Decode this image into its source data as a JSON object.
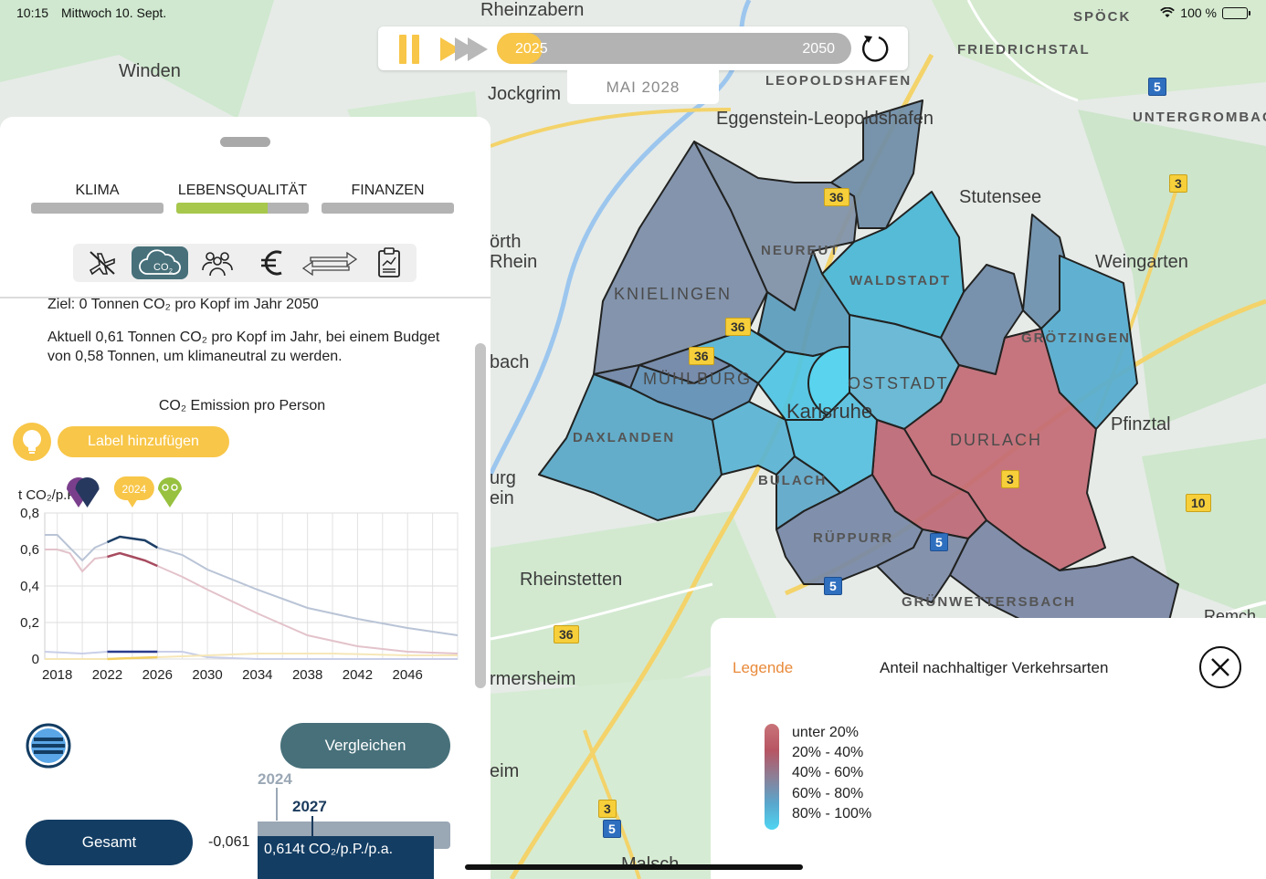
{
  "status_bar": {
    "time": "10:15",
    "date": "Mittwoch 10. Sept.",
    "battery": "100 %"
  },
  "timeline": {
    "start_year": "2025",
    "end_year": "2050",
    "current_label": "MAI 2028",
    "progress": 0.13
  },
  "map": {
    "places": {
      "rheinzabern": "Rheinzabern",
      "winden": "Winden",
      "jockgrim": "Jockgrim",
      "spoeck": "SPÖCK",
      "friedrichstal": "FRIEDRICHSTAL",
      "leopoldshafen": "LEOPOLDSHAFEN",
      "eggenstein": "Eggenstein-Leopoldshafen",
      "untergrombach": "UNTERGROMBAC",
      "stutensee": "Stutensee",
      "neureut": "NEUREUT",
      "woerth": "örth",
      "rhein": "Rhein",
      "waldstadt": "WALDSTADT",
      "weingarten": "Weingarten",
      "knielingen": "KNIELINGEN",
      "groetzingen": "GRÖTZINGEN",
      "bach": "bach",
      "muehlburg": "MÜHLBURG",
      "oststadt": "OSTSTADT",
      "karlsruhe": "Karlsruhe",
      "pfinztal": "Pfinztal",
      "daxlanden": "DAXLANDEN",
      "durlach": "DURLACH",
      "burg": "urg",
      "ein": "ein",
      "bulach": "BULACH",
      "rueppurr": "RÜPPURR",
      "rheinstetten": "Rheinstetten",
      "gruenwettersbach": "GRÜNWETTERSBACH",
      "remch": "Remch",
      "rmersheim": "rmersheim",
      "eim": "eim",
      "malsch": "Malsch"
    },
    "shields": {
      "b36a": "36",
      "b36b": "36",
      "b36c": "36",
      "b10": "10",
      "b3a": "3",
      "b3b": "3",
      "b3c": "3",
      "b5a": "5",
      "b5b": "5",
      "b5c": "5",
      "b5d": "5",
      "b36d": "36"
    }
  },
  "panel": {
    "tabs": [
      {
        "label": "KLIMA",
        "progress": 0
      },
      {
        "label": "LEBENSQUALITÄT",
        "progress": 0.69
      },
      {
        "label": "FINANZEN",
        "progress": 0
      }
    ],
    "icons": [
      "no-flight-icon",
      "co2-cloud-icon",
      "people-icon",
      "euro-icon",
      "exchange-arrows-icon",
      "report-clipboard-icon"
    ],
    "goal_text": "Ziel: 0 Tonnen CO₂ pro Kopf im Jahr 2050",
    "current_text": "Aktuell 0,61 Tonnen CO₂ pro Kopf im Jahr, bei einem Budget von 0,58 Tonnen, um klimaneutral zu werden.",
    "add_label_button": "Label hinzufügen",
    "compare_button": "Vergleichen",
    "total_button": "Gesamt",
    "delta_value": "-0,061",
    "compare_year_old": "2024",
    "compare_year_new": "2027",
    "compare_value": "0,614t CO₂/p.P./p.a."
  },
  "chart_data": {
    "type": "line",
    "title": "CO₂ Emission pro Person",
    "ylabel": "t CO₂/p.P.",
    "ylim": [
      0,
      0.8
    ],
    "y_ticks": [
      "0",
      "0,2",
      "0,4",
      "0,6",
      "0,8"
    ],
    "x_ticks": [
      "2018",
      "2022",
      "2026",
      "2030",
      "2034",
      "2038",
      "2042",
      "2046"
    ],
    "xlim": [
      2017,
      2050
    ],
    "marker_label": "2024",
    "series": [
      {
        "color": "#1d3f66",
        "past_color": "#b9c4d6",
        "x": [
          2017,
          2018,
          2019,
          2020,
          2021,
          2022,
          2023,
          2024,
          2025,
          2026,
          2028,
          2030,
          2034,
          2038,
          2042,
          2046,
          2050
        ],
        "values": [
          0.68,
          0.68,
          0.61,
          0.54,
          0.61,
          0.64,
          0.67,
          0.66,
          0.65,
          0.61,
          0.57,
          0.49,
          0.38,
          0.28,
          0.22,
          0.17,
          0.13
        ]
      },
      {
        "color": "#a74b5f",
        "past_color": "#e3c3cb",
        "x": [
          2017,
          2018,
          2019,
          2020,
          2021,
          2022,
          2023,
          2024,
          2025,
          2026,
          2028,
          2030,
          2034,
          2038,
          2042,
          2046,
          2050
        ],
        "values": [
          0.6,
          0.6,
          0.58,
          0.48,
          0.55,
          0.56,
          0.58,
          0.56,
          0.54,
          0.51,
          0.45,
          0.38,
          0.25,
          0.13,
          0.07,
          0.04,
          0.03
        ]
      },
      {
        "color": "#2b3c8c",
        "past_color": "#c9cfe8",
        "x": [
          2017,
          2020,
          2022,
          2024,
          2026,
          2028,
          2030,
          2034,
          2040,
          2046,
          2050
        ],
        "values": [
          0.04,
          0.03,
          0.04,
          0.04,
          0.04,
          0.04,
          0.01,
          0.0,
          0.0,
          0.0,
          0.0
        ]
      },
      {
        "color": "#f3cf62",
        "past_color": "#f6e7b8",
        "x": [
          2017,
          2022,
          2026,
          2030,
          2034,
          2040,
          2046,
          2050
        ],
        "values": [
          0.0,
          0.0,
          0.01,
          0.02,
          0.03,
          0.03,
          0.02,
          0.02
        ]
      }
    ]
  },
  "legend": {
    "tab_label": "Legende",
    "title": "Anteil nachhaltiger Verkehrsarten",
    "items": [
      "unter 20%",
      "20% - 40%",
      "40% - 60%",
      "60% - 80%",
      "80% - 100%"
    ]
  }
}
